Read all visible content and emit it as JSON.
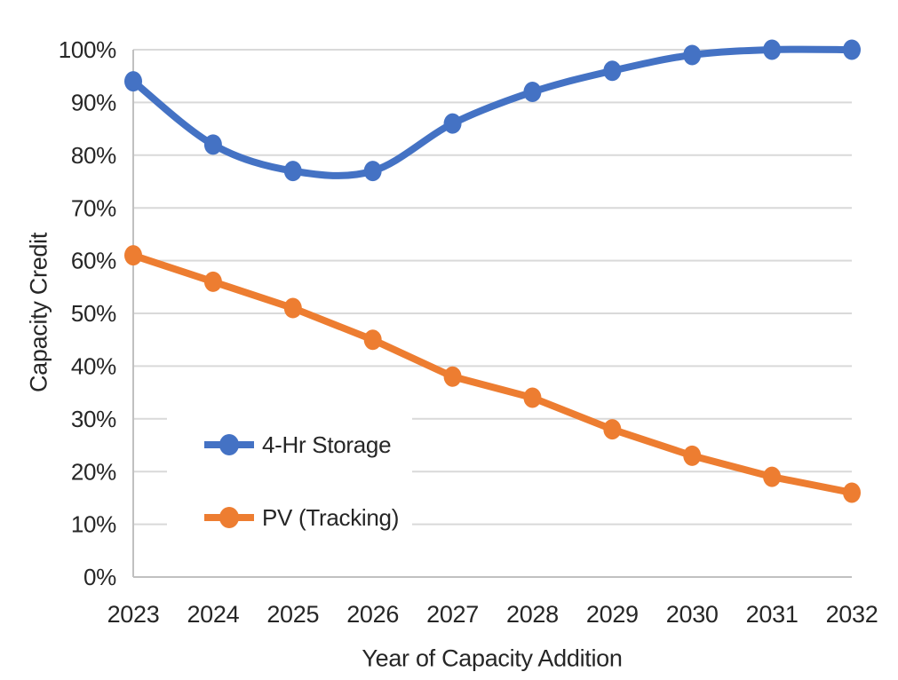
{
  "chart_data": {
    "type": "line",
    "title": "",
    "xlabel": "Year of Capacity Addition",
    "ylabel": "Capacity Credit",
    "categories": [
      "2023",
      "2024",
      "2025",
      "2026",
      "2027",
      "2028",
      "2029",
      "2030",
      "2031",
      "2032"
    ],
    "series": [
      {
        "name": "4-Hr Storage",
        "color": "#4472C4",
        "smooth": true,
        "values": [
          94,
          82,
          77,
          77,
          86,
          92,
          96,
          99,
          100,
          100
        ]
      },
      {
        "name": "PV (Tracking)",
        "color": "#ED7D31",
        "smooth": false,
        "values": [
          61,
          56,
          51,
          45,
          38,
          34,
          28,
          23,
          19,
          16
        ]
      }
    ],
    "ylim": [
      0,
      100
    ],
    "ytick_step": 10,
    "yticklabels": [
      "0%",
      "10%",
      "20%",
      "30%",
      "40%",
      "50%",
      "60%",
      "70%",
      "80%",
      "90%",
      "100%"
    ],
    "grid": "horizontal",
    "legend_position": "inside-lower-left"
  },
  "colors": {
    "background": "#FFFFFF",
    "gridline": "#D9D9D9",
    "axis": "#C0C0C0",
    "text": "#262626"
  }
}
